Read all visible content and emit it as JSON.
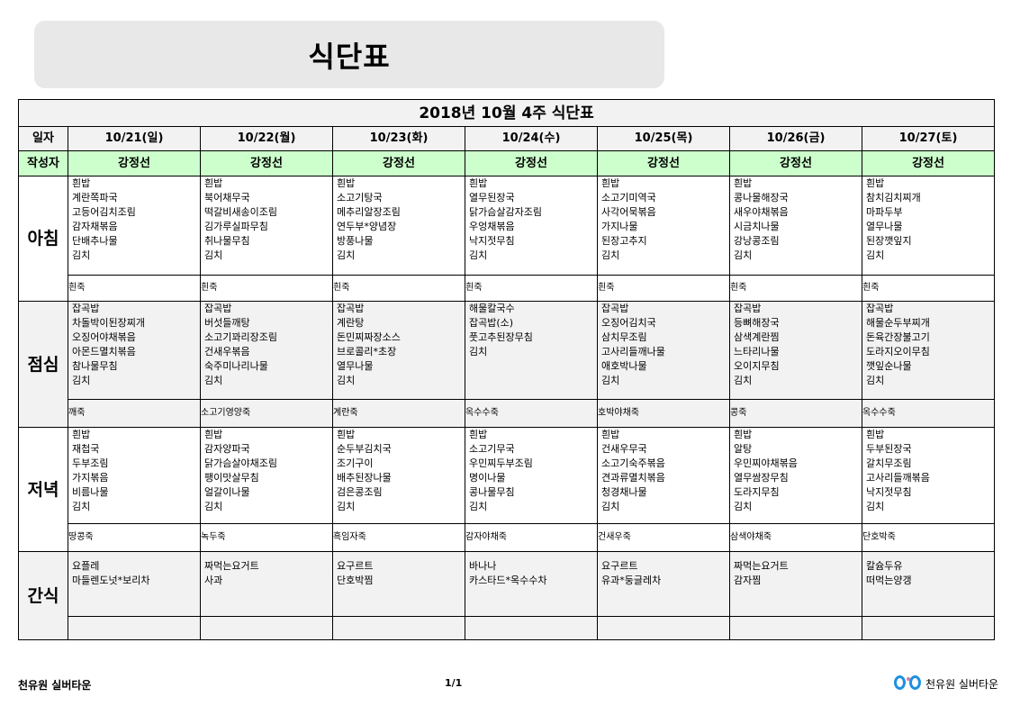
{
  "header": {
    "title": "식단표"
  },
  "menu": {
    "week_title": "2018년 10월 4주 식단표",
    "date_label": "일자",
    "writer_label": "작성자",
    "dates": [
      "10/21(일)",
      "10/22(월)",
      "10/23(화)",
      "10/24(수)",
      "10/25(목)",
      "10/26(금)",
      "10/27(토)"
    ],
    "writers": [
      "강정선",
      "강정선",
      "강정선",
      "강정선",
      "강정선",
      "강정선",
      "강정선"
    ],
    "meals": [
      {
        "label": "아침",
        "items": [
          [
            "흰밥",
            "계란쪽파국",
            "고등어김치조림",
            "감자채볶음",
            "단배추나물",
            "김치"
          ],
          [
            "흰밥",
            "북어채무국",
            "떡갈비새송이조림",
            "김가루실파무침",
            "취나물무침",
            "김치"
          ],
          [
            "흰밥",
            "소고기탕국",
            "메추리알장조림",
            "연두부*양념장",
            "방풍나물",
            "김치"
          ],
          [
            "흰밥",
            "열무된장국",
            "닭가슴살감자조림",
            "우엉채볶음",
            "낙지젓무침",
            "김치"
          ],
          [
            "흰밥",
            "소고기미역국",
            "사각어묵볶음",
            "가지나물",
            "된장고추지",
            "김치"
          ],
          [
            "흰밥",
            "콩나물해장국",
            "새우야채볶음",
            "시금치나물",
            "강낭콩조림",
            "김치"
          ],
          [
            "흰밥",
            "참치김치찌개",
            "마파두부",
            "열무나물",
            "된장깻잎지",
            "김치"
          ]
        ],
        "porridge": [
          "흰죽",
          "흰죽",
          "흰죽",
          "흰죽",
          "흰죽",
          "흰죽",
          "흰죽"
        ]
      },
      {
        "label": "점심",
        "items": [
          [
            "잡곡밥",
            "차돌박이된장찌개",
            "오징어야채볶음",
            "아몬드멸치볶음",
            "참나물무침",
            "김치"
          ],
          [
            "잡곡밥",
            "버섯들깨탕",
            "소고기꽈리장조림",
            "건새우볶음",
            "숙주미나리나물",
            "김치"
          ],
          [
            "잡곡밥",
            "계란탕",
            "돈민찌짜장소스",
            "브로콜리*초장",
            "열무나물",
            "김치"
          ],
          [
            "",
            "해물칼국수",
            "잡곡밥(소)",
            "풋고추된장무침",
            "김치"
          ],
          [
            "잡곡밥",
            "오징어김치국",
            "삼치무조림",
            "고사리들깨나물",
            "애호박나물",
            "김치"
          ],
          [
            "잡곡밥",
            "등뼈해장국",
            "삼색계란찜",
            "느타리나물",
            "오이지무침",
            "김치"
          ],
          [
            "잡곡밥",
            "해물순두부찌개",
            "돈육간장불고기",
            "도라지오이무침",
            "깻잎순나물",
            "김치"
          ]
        ],
        "porridge": [
          "깨죽",
          "소고기영양죽",
          "계란죽",
          "옥수수죽",
          "호박야채죽",
          "콩죽",
          "옥수수죽"
        ]
      },
      {
        "label": "저녁",
        "items": [
          [
            "흰밥",
            "재첩국",
            "두부조림",
            "가지볶음",
            "비름나물",
            "김치"
          ],
          [
            "흰밥",
            "감자양파국",
            "닭가슴살야채조림",
            "팽이맛살무침",
            "얼갈이나물",
            "김치"
          ],
          [
            "흰밥",
            "순두부김치국",
            "조기구이",
            "배추된장나물",
            "검은콩조림",
            "김치"
          ],
          [
            "흰밥",
            "소고기무국",
            "우민찌두부조림",
            "명이나물",
            "콩나물무침",
            "김치"
          ],
          [
            "흰밥",
            "건새우무국",
            "소고기숙주볶음",
            "견과류멸치볶음",
            "청경채나물",
            "김치"
          ],
          [
            "흰밥",
            "알탕",
            "우민찌야채볶음",
            "열무쌈장무침",
            "도라지무침",
            "김치"
          ],
          [
            "흰밥",
            "두부된장국",
            "갈치무조림",
            "고사리들깨볶음",
            "낙지젓무침",
            "김치"
          ]
        ],
        "porridge": [
          "땅콩죽",
          "녹두죽",
          "흑임자죽",
          "감자야채죽",
          "건새우죽",
          "삼색야채죽",
          "단호박죽"
        ]
      },
      {
        "label": "간식",
        "items": [
          [
            "요플레",
            "마들렌도넛*보리차"
          ],
          [
            "짜먹는요거트",
            "사과"
          ],
          [
            "요구르트",
            "단호박찜"
          ],
          [
            "바나나",
            "카스타드*옥수수차"
          ],
          [
            "요구르트",
            "유과*둥글레차"
          ],
          [
            "짜먹는요거트",
            "감자찜"
          ],
          [
            "칼슘두유",
            "떠먹는양갱"
          ]
        ],
        "porridge": [
          "",
          "",
          "",
          "",
          "",
          "",
          ""
        ]
      }
    ]
  },
  "footer": {
    "organization": "천유원 실버타운",
    "page": "1/1",
    "logo_text": "천유원 실버타운"
  },
  "colors": {
    "writer_row": "#ccffcc",
    "title_box": "#e8e8e8",
    "shaded_row": "#f2f2f2",
    "logo_blue": "#1e90e0"
  }
}
